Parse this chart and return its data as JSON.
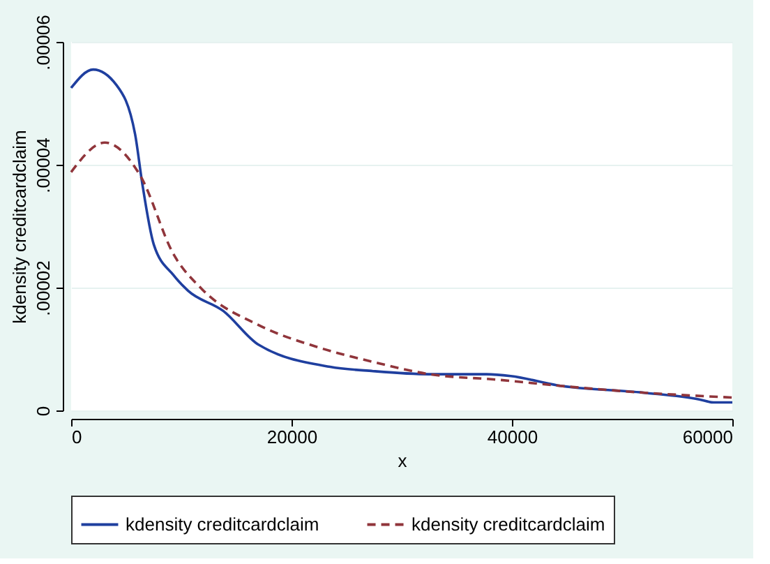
{
  "chart_data": {
    "type": "line",
    "xlabel": "x",
    "ylabel": "kdensity creditcardclaim",
    "xlim": [
      0,
      60000
    ],
    "xticks": [
      0,
      20000,
      40000,
      60000
    ],
    "ylim": [
      0,
      6e-05
    ],
    "yticks": [
      0,
      {
        "value": 2e-05,
        "label": ".00002"
      },
      {
        "value": 4e-05,
        "label": ".00004"
      },
      {
        "value": 6e-05,
        "label": ".00006"
      }
    ],
    "grid": "y",
    "legend": "bottom",
    "marker": "none",
    "series": [
      {
        "name": "kdensity creditcardclaim",
        "color": "#1f3f9f",
        "line_style": "solid",
        "x": [
          0,
          2000,
          4100,
          5800,
          6450,
          7500,
          9300,
          10600,
          13800,
          17000,
          23500,
          27400,
          32500,
          37700,
          39900,
          44100,
          51900,
          57000,
          58300,
          60000
        ],
        "values": [
          5.25e-05,
          5.55e-05,
          5.3e-05,
          4.5e-05,
          3.7e-05,
          2.7e-05,
          2.2e-05,
          1.95e-05,
          1.62e-05,
          1.07e-05,
          7.1e-06,
          6.4e-06,
          5.9e-06,
          5.9e-06,
          5.6e-06,
          4.1e-06,
          2.9e-06,
          1.8e-06,
          1.3e-06,
          1.3e-06
        ]
      },
      {
        "name": "kdensity creditcardclaim",
        "color": "#90353b",
        "line_style": "dashed",
        "x": [
          0,
          3060,
          6280,
          9300,
          11900,
          17000,
          22200,
          27400,
          32500,
          38700,
          45000,
          51900,
          60000
        ],
        "values": [
          3.88e-05,
          4.36e-05,
          3.82e-05,
          2.54e-05,
          1.97e-05,
          1.39e-05,
          1.04e-05,
          7.9e-06,
          5.9e-06,
          5e-06,
          3.9e-06,
          2.9e-06,
          2.1e-06
        ]
      }
    ]
  }
}
